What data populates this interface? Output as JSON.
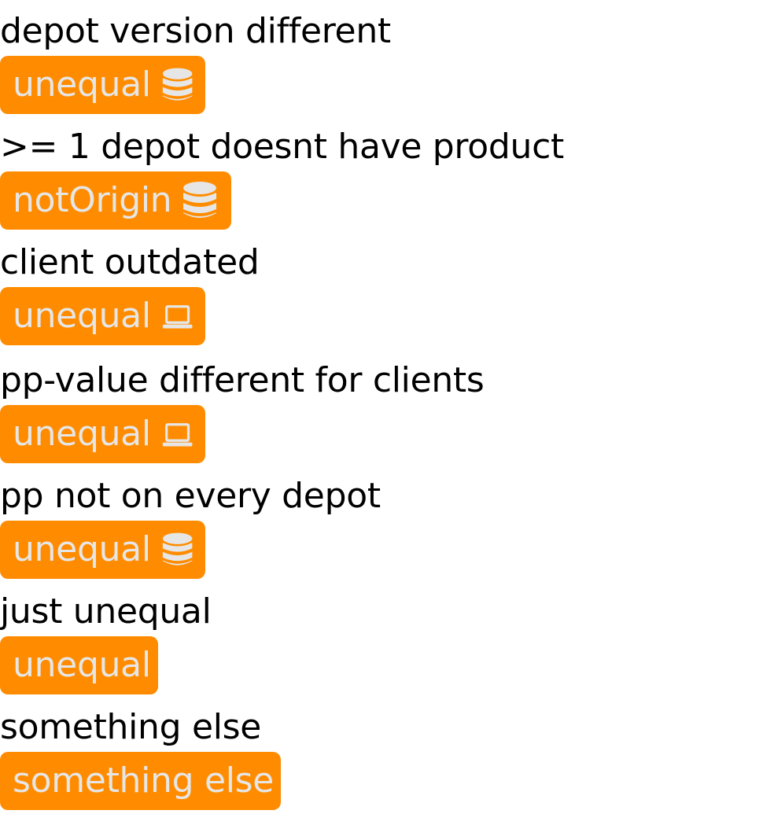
{
  "style": {
    "badge_background": "#ff8c00",
    "badge_text_color": "#e6e6e6"
  },
  "entries": [
    {
      "caption": "depot version different",
      "badge": "unequal",
      "icon": "database-icon"
    },
    {
      "caption": ">= 1 depot doesnt have product",
      "badge": "notOrigin",
      "icon": "database-icon"
    },
    {
      "caption": "client outdated",
      "badge": "unequal",
      "icon": "laptop-icon"
    },
    {
      "caption": "pp-value different for clients",
      "badge": "unequal",
      "icon": "laptop-icon"
    },
    {
      "caption": "pp not on every depot",
      "badge": "unequal",
      "icon": "database-icon"
    },
    {
      "caption": "just unequal",
      "badge": "unequal",
      "icon": ""
    },
    {
      "caption": "something else",
      "badge": "something else",
      "icon": ""
    }
  ]
}
